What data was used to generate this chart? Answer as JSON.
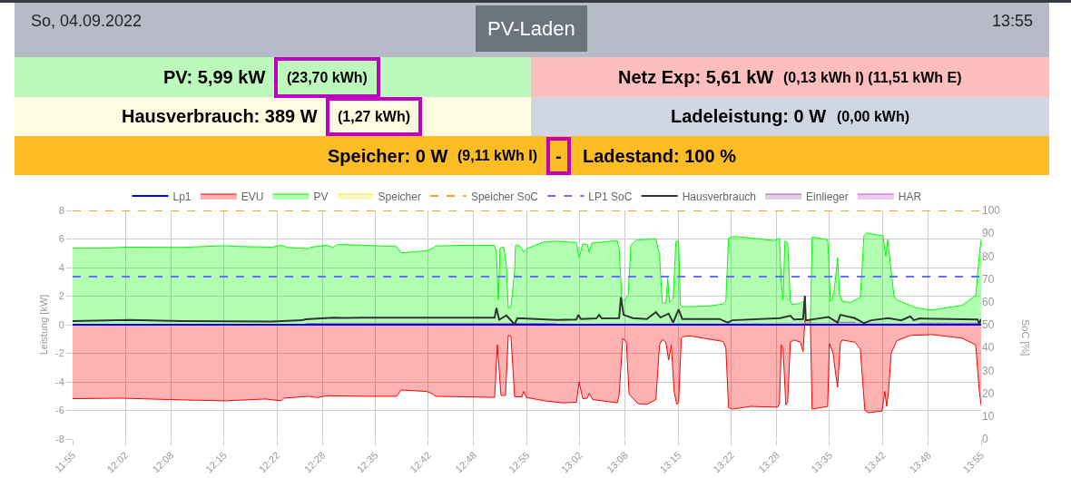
{
  "chart_data": {
    "type": "area",
    "annotations": [
      "So, 04.09.2022",
      "PV-Laden",
      "13:55",
      "PV: 5,99 kW",
      "(23,70 kWh)",
      "Netz Exp: 5,61 kW",
      "(0,13 kWh I) (11,51 kWh E)",
      "Hausverbrauch: 389 W",
      "(1,27 kWh)",
      "Ladeleistung: 0 W",
      "(0,00 kWh)",
      "Speicher: 0 W",
      "(9,11 kWh I)",
      "-",
      "Ladestand: 100 %"
    ],
    "ylabel": "Leistung [kW]",
    "y2label": "SoC [%]",
    "xlim": [
      11.917,
      13.917
    ],
    "xticks": [
      {
        "value": 11.917,
        "label": "11:55"
      },
      {
        "value": 12.033,
        "label": "12:02"
      },
      {
        "value": 12.133,
        "label": "12:08"
      },
      {
        "value": 12.25,
        "label": "12:15"
      },
      {
        "value": 12.367,
        "label": "12:22"
      },
      {
        "value": 12.467,
        "label": "12:28"
      },
      {
        "value": 12.583,
        "label": "12:35"
      },
      {
        "value": 12.7,
        "label": "12:42"
      },
      {
        "value": 12.8,
        "label": "12:48"
      },
      {
        "value": 12.917,
        "label": "12:55"
      },
      {
        "value": 13.033,
        "label": "13:02"
      },
      {
        "value": 13.133,
        "label": "13:08"
      },
      {
        "value": 13.25,
        "label": "13:15"
      },
      {
        "value": 13.367,
        "label": "13:22"
      },
      {
        "value": 13.467,
        "label": "13:28"
      },
      {
        "value": 13.583,
        "label": "13:35"
      },
      {
        "value": 13.7,
        "label": "13:42"
      },
      {
        "value": 13.8,
        "label": "13:48"
      },
      {
        "value": 13.917,
        "label": "13:55"
      }
    ],
    "ylim": [
      -8,
      8
    ],
    "yticks": [
      -8,
      -6,
      -4,
      -2,
      0,
      2,
      4,
      6,
      8
    ],
    "y2lim": [
      0,
      100
    ],
    "y2ticks": [
      0,
      10,
      20,
      30,
      40,
      50,
      60,
      70,
      80,
      90,
      100
    ],
    "grid": true,
    "legend": "top",
    "series": [
      {
        "name": "Lp1",
        "type": "line",
        "color": "#0000ff",
        "x": [
          11.917,
          13.917
        ],
        "values": [
          0,
          0
        ]
      },
      {
        "name": "EVU",
        "color": "#ff0000",
        "x": [
          11.917,
          12.023,
          12.13,
          12.25,
          12.342,
          12.376,
          12.382,
          12.436,
          12.456,
          12.476,
          12.556,
          12.63,
          12.64,
          12.696,
          12.71,
          12.716,
          12.846,
          12.852,
          12.86,
          12.87,
          12.876,
          12.882,
          12.89,
          12.906,
          12.91,
          12.916,
          12.956,
          12.996,
          13.026,
          13.032,
          13.04,
          13.05,
          13.054,
          13.062,
          13.116,
          13.12,
          13.128,
          13.136,
          13.142,
          13.162,
          13.181,
          13.201,
          13.209,
          13.215,
          13.223,
          13.229,
          13.235,
          13.241,
          13.247,
          13.251,
          13.257,
          13.261,
          13.275,
          13.349,
          13.355,
          13.361,
          13.369,
          13.409,
          13.469,
          13.473,
          13.477,
          13.481,
          13.487,
          13.491,
          13.497,
          13.505,
          13.519,
          13.525,
          13.529,
          13.541,
          13.545,
          13.579,
          13.583,
          13.591,
          13.597,
          13.601,
          13.607,
          13.611,
          13.639,
          13.651,
          13.661,
          13.669,
          13.699,
          13.705,
          13.709,
          13.713,
          13.719,
          13.731,
          13.761,
          13.809,
          13.875,
          13.905,
          13.913,
          13.917
        ],
        "values": [
          -5.18,
          -5.14,
          -5.24,
          -5.33,
          -5.2,
          -5.33,
          -5.14,
          -5.01,
          -5.1,
          -4.97,
          -5.01,
          -5.01,
          -4.57,
          -4.67,
          -4.85,
          -5.01,
          -5.09,
          -1.41,
          -4.95,
          -4.95,
          -0.75,
          -0.8,
          -5.05,
          -5.05,
          -4.67,
          -5.09,
          -5.33,
          -5.47,
          -5.43,
          -4.0,
          -5.18,
          -5.14,
          -4.8,
          -5.24,
          -5.47,
          -4.95,
          -0.94,
          -1.22,
          -4.86,
          -5.53,
          -5.58,
          -5.24,
          -1.41,
          -1.03,
          -1.22,
          -2.47,
          -1.41,
          -4.67,
          -5.58,
          -5.43,
          -0.94,
          -0.84,
          -0.78,
          -1.17,
          -1.6,
          -5.81,
          -5.91,
          -5.72,
          -5.77,
          -5.52,
          -1.41,
          -1.7,
          -5.62,
          -5.43,
          -1.22,
          -1.07,
          -1.22,
          -1.89,
          0.31,
          0.31,
          -5.91,
          -5.72,
          -1.32,
          -1.99,
          -3.52,
          -4.38,
          -1.32,
          -1.07,
          -1.22,
          -1.7,
          -6.0,
          -6.16,
          -6.04,
          -4.67,
          -5.72,
          -4.67,
          -1.99,
          -1.13,
          -0.75,
          -0.69,
          -0.94,
          -1.41,
          -4.67,
          -5.62
        ]
      },
      {
        "name": "PV",
        "color": "#00ff00",
        "x": [
          11.917,
          11.991,
          12.037,
          12.156,
          12.25,
          12.29,
          12.356,
          12.376,
          12.39,
          12.436,
          12.442,
          12.476,
          12.49,
          12.502,
          12.556,
          12.63,
          12.64,
          12.696,
          12.71,
          12.716,
          12.782,
          12.846,
          12.85,
          12.854,
          12.858,
          12.866,
          12.872,
          12.876,
          12.882,
          12.89,
          12.892,
          12.902,
          12.91,
          12.916,
          12.956,
          12.982,
          13.026,
          13.032,
          13.04,
          13.05,
          13.054,
          13.06,
          13.116,
          13.12,
          13.126,
          13.132,
          13.14,
          13.146,
          13.16,
          13.201,
          13.209,
          13.215,
          13.223,
          13.227,
          13.231,
          13.239,
          13.245,
          13.251,
          13.255,
          13.259,
          13.315,
          13.349,
          13.355,
          13.361,
          13.371,
          13.409,
          13.461,
          13.473,
          13.477,
          13.481,
          13.485,
          13.491,
          13.497,
          13.501,
          13.519,
          13.525,
          13.529,
          13.531,
          13.541,
          13.545,
          13.579,
          13.581,
          13.585,
          13.589,
          13.593,
          13.599,
          13.601,
          13.605,
          13.611,
          13.629,
          13.651,
          13.659,
          13.665,
          13.701,
          13.707,
          13.711,
          13.715,
          13.725,
          13.731,
          13.775,
          13.809,
          13.875,
          13.905,
          13.913,
          13.917
        ],
        "values": [
          5.37,
          5.37,
          5.43,
          5.41,
          5.53,
          5.47,
          5.43,
          5.56,
          5.41,
          5.33,
          5.43,
          5.56,
          5.41,
          5.62,
          5.56,
          5.47,
          5.03,
          5.18,
          5.37,
          5.51,
          5.56,
          5.56,
          5.0,
          1.74,
          5.37,
          5.43,
          4.13,
          1.17,
          1.26,
          3.75,
          5.56,
          5.5,
          5.09,
          5.32,
          5.81,
          5.85,
          5.75,
          4.7,
          5.66,
          5.62,
          5.09,
          5.72,
          5.89,
          5.37,
          1.84,
          1.64,
          2.12,
          5.56,
          5.95,
          6.0,
          4.89,
          1.55,
          1.49,
          3.27,
          1.55,
          1.84,
          5.81,
          5.89,
          1.36,
          1.26,
          1.3,
          1.45,
          1.64,
          6.04,
          6.18,
          6.08,
          5.89,
          6.04,
          2.98,
          1.74,
          5.85,
          5.75,
          1.64,
          1.4,
          1.49,
          1.64,
          1.45,
          0,
          0,
          6.14,
          5.95,
          4.9,
          1.64,
          1.8,
          2.31,
          4.03,
          4.67,
          2.22,
          1.64,
          1.55,
          1.93,
          6.23,
          6.42,
          6.23,
          4.8,
          5.95,
          4.89,
          2.03,
          1.74,
          1.17,
          1.03,
          1.36,
          2.03,
          4.89,
          5.95
        ]
      },
      {
        "name": "Speicher",
        "color": "#e8f040"
      },
      {
        "name": "Speicher SoC",
        "type": "line",
        "axis": "y2",
        "line_style": "dashed",
        "color": "#ffa030",
        "x": [
          11.917,
          13.917
        ],
        "values": [
          100,
          100
        ]
      },
      {
        "name": "LP1 SoC",
        "type": "line",
        "axis": "y2",
        "line_style": "dashed",
        "color": "#6470ff",
        "x": [
          11.917,
          13.917
        ],
        "values": [
          71,
          71
        ]
      },
      {
        "name": "Hausverbrauch",
        "type": "line",
        "color": "#333333",
        "x": [
          11.917,
          12.043,
          12.156,
          12.356,
          12.422,
          12.43,
          12.49,
          12.516,
          12.556,
          12.846,
          12.85,
          12.856,
          12.872,
          12.882,
          12.89,
          12.896,
          12.982,
          13.026,
          13.03,
          13.036,
          13.07,
          13.076,
          13.082,
          13.12,
          13.124,
          13.13,
          13.15,
          13.181,
          13.201,
          13.211,
          13.229,
          13.239,
          13.251,
          13.259,
          13.341,
          13.359,
          13.369,
          13.475,
          13.497,
          13.505,
          13.525,
          13.529,
          13.531,
          13.581,
          13.601,
          13.607,
          13.639,
          13.659,
          13.675,
          13.713,
          13.741,
          13.761,
          13.769,
          13.781,
          13.909,
          13.913,
          13.917
        ],
        "values": [
          0.25,
          0.34,
          0.25,
          0.23,
          0.31,
          0.38,
          0.5,
          0.48,
          0.5,
          0.5,
          1.17,
          0.35,
          0.65,
          0.3,
          0.02,
          0.46,
          0.34,
          0.36,
          0.69,
          0.4,
          0.44,
          0.69,
          0.44,
          0.46,
          1.93,
          0.69,
          0.46,
          0.4,
          0.88,
          0.5,
          0.78,
          0.15,
          1.07,
          0.4,
          0.4,
          0.15,
          0.31,
          0.46,
          0.63,
          0.36,
          0.4,
          2.03,
          0.31,
          0.54,
          0.15,
          0.69,
          0.46,
          0.11,
          0.31,
          0.46,
          0.31,
          0.59,
          0.31,
          0.44,
          0.36,
          0.08,
          0.4
        ]
      },
      {
        "name": "Einlieger",
        "color": "#a060a8",
        "x": [
          12.43,
          12.982,
          13.05,
          13.605,
          13.641,
          13.7,
          13.781,
          13.917
        ],
        "values": [
          0.08,
          0.08,
          null,
          0.17,
          0.17,
          null,
          0.11,
          0.11
        ]
      },
      {
        "name": "HAR",
        "color": "#c050c8"
      }
    ]
  }
}
